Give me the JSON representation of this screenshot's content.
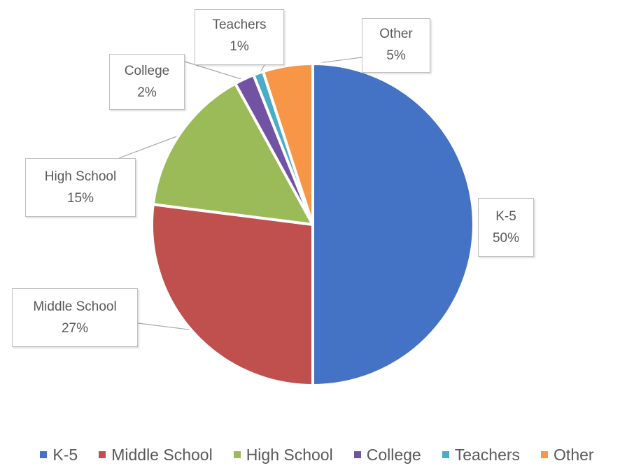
{
  "chart_data": {
    "type": "pie",
    "categories": [
      "K-5",
      "Middle School",
      "High School",
      "College",
      "Teachers",
      "Other"
    ],
    "values": [
      50,
      27,
      15,
      2,
      1,
      5
    ],
    "value_labels": [
      "50%",
      "27%",
      "15%",
      "2%",
      "1%",
      "5%"
    ],
    "colors": [
      "#4472c4",
      "#c0504d",
      "#9bbb59",
      "#7152a3",
      "#4bacc6",
      "#f79646"
    ],
    "title": "",
    "legend_position": "bottom",
    "start_angle": "12 o'clock, clockwise"
  }
}
